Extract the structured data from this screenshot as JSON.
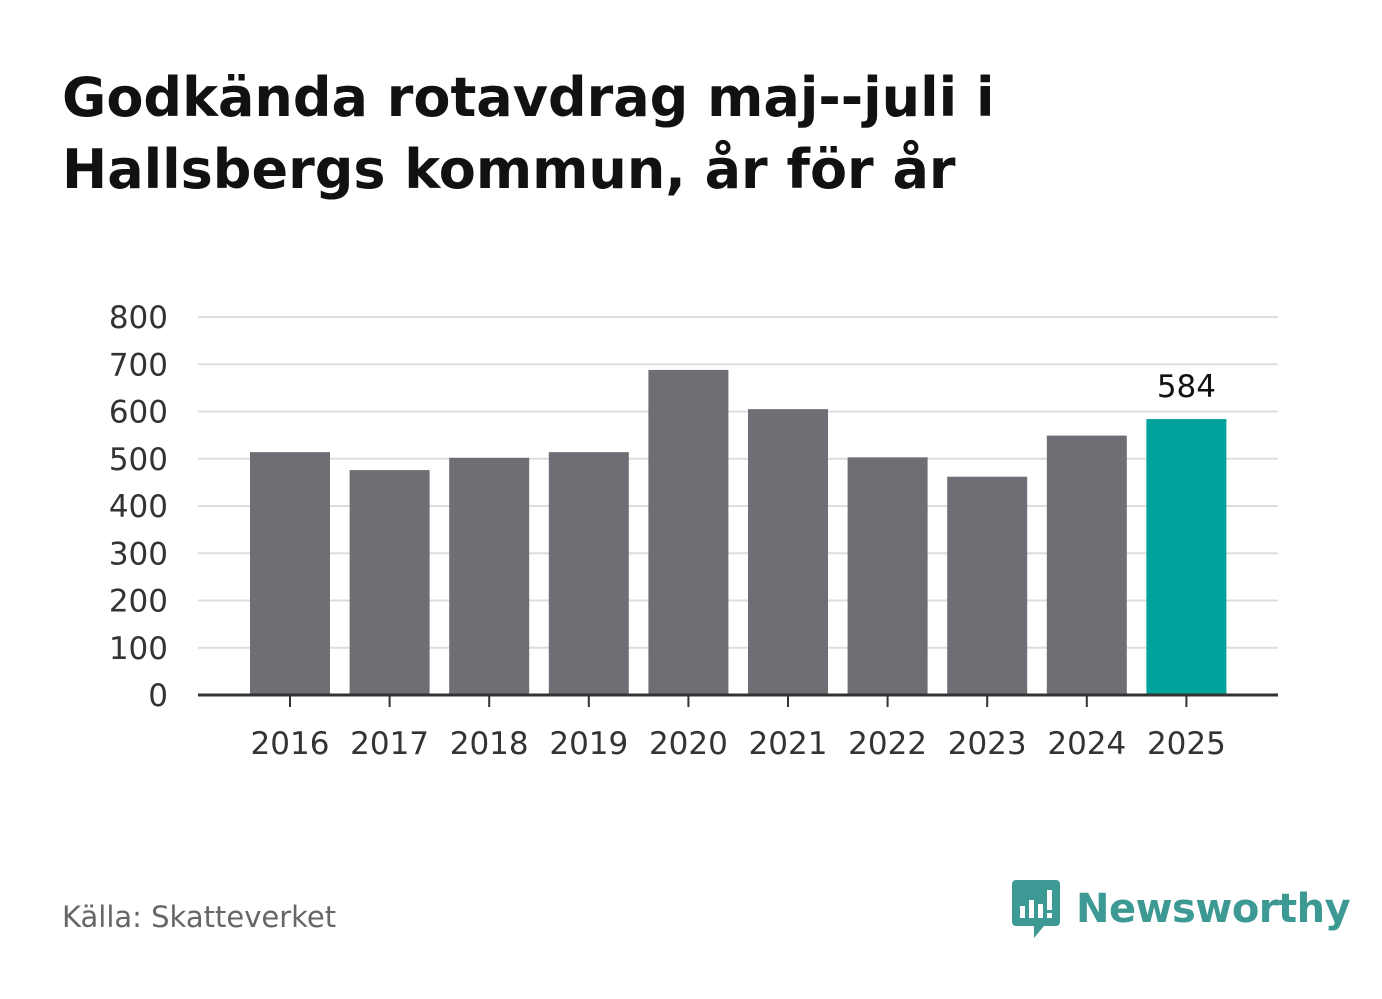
{
  "title_lines": [
    "Godkända rotavdrag maj--juli i",
    "Hallsbergs kommun, år för år"
  ],
  "source": "Källa: Skatteverket",
  "brand": {
    "name": "Newsworthy",
    "icon": "newsworthy-logo-icon",
    "color": "#3d9993"
  },
  "colors": {
    "bar": "#6f6e74",
    "highlight": "#00a39b",
    "grid": "#dddddd",
    "axis": "#333333",
    "text": "#333333"
  },
  "chart_data": {
    "type": "bar",
    "categories": [
      "2016",
      "2017",
      "2018",
      "2019",
      "2020",
      "2021",
      "2022",
      "2023",
      "2024",
      "2025"
    ],
    "values": [
      514,
      476,
      502,
      514,
      688,
      605,
      503,
      462,
      549,
      584
    ],
    "highlight_index": 9,
    "data_labels": {
      "9": "584"
    },
    "ylim": [
      0,
      800
    ],
    "yticks": [
      0,
      100,
      200,
      300,
      400,
      500,
      600,
      700,
      800
    ],
    "grid": true
  }
}
